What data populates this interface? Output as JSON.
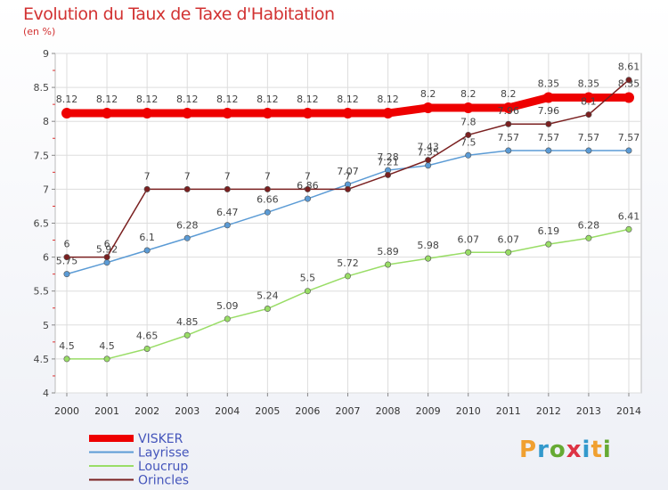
{
  "title": "Evolution du Taux de Taxe d'Habitation",
  "unit": "(en %)",
  "logo": "Proxiti",
  "chart_data": {
    "type": "line",
    "title": "Evolution du Taux de Taxe d'Habitation",
    "ylabel": "(en %)",
    "ylim": [
      4,
      9
    ],
    "yticks": [
      "4",
      "4.5",
      "5",
      "5.5",
      "6",
      "6.5",
      "7",
      "7.5",
      "8",
      "8.5",
      "9"
    ],
    "x": [
      "2000",
      "2001",
      "2002",
      "2003",
      "2004",
      "2005",
      "2006",
      "2007",
      "2008",
      "2009",
      "2010",
      "2011",
      "2012",
      "2013",
      "2014"
    ],
    "legend_position": "bottom-left",
    "series": [
      {
        "name": "VISKER",
        "color": "#ee0000",
        "values": [
          8.12,
          8.12,
          8.12,
          8.12,
          8.12,
          8.12,
          8.12,
          8.12,
          8.12,
          8.2,
          8.2,
          8.2,
          8.35,
          8.35,
          8.35
        ],
        "labels": [
          "8.12",
          "8.12",
          "8.12",
          "8.12",
          "8.12",
          "8.12",
          "8.12",
          "8.12",
          "8.12",
          "8.2",
          "8.2",
          "8.2",
          "8.35",
          "8.35",
          "8.35"
        ]
      },
      {
        "name": "Layrisse",
        "color": "#5b9bd5",
        "values": [
          5.75,
          5.92,
          6.1,
          6.28,
          6.47,
          6.66,
          6.86,
          7.07,
          7.28,
          7.35,
          7.5,
          7.57,
          7.57,
          7.57,
          7.57
        ],
        "labels": [
          "5.75",
          "5.92",
          "6.1",
          "6.28",
          "6.47",
          "6.66",
          "6.86",
          "7.07",
          "7.28",
          "7.35",
          "7.5",
          "7.57",
          "7.57",
          "7.57",
          "7.57"
        ]
      },
      {
        "name": "Loucrup",
        "color": "#99dd66",
        "values": [
          4.5,
          4.5,
          4.65,
          4.85,
          5.09,
          5.24,
          5.5,
          5.72,
          5.89,
          5.98,
          6.07,
          6.07,
          6.19,
          6.28,
          6.41
        ],
        "labels": [
          "4.5",
          "4.5",
          "4.65",
          "4.85",
          "5.09",
          "5.24",
          "5.5",
          "5.72",
          "5.89",
          "5.98",
          "6.07",
          "6.07",
          "6.19",
          "6.28",
          "6.41"
        ]
      },
      {
        "name": "Orincles",
        "color": "#7a2020",
        "values": [
          6,
          6,
          7,
          7,
          7,
          7,
          7,
          7,
          7.21,
          7.43,
          7.8,
          7.96,
          7.96,
          8.1,
          8.61
        ],
        "labels": [
          "6",
          "6",
          "7",
          "7",
          "7",
          "7",
          "7",
          "7",
          "7.21",
          "7.43",
          "7.8",
          "7.96",
          "7.96",
          "8.1",
          "8.61"
        ]
      }
    ]
  }
}
